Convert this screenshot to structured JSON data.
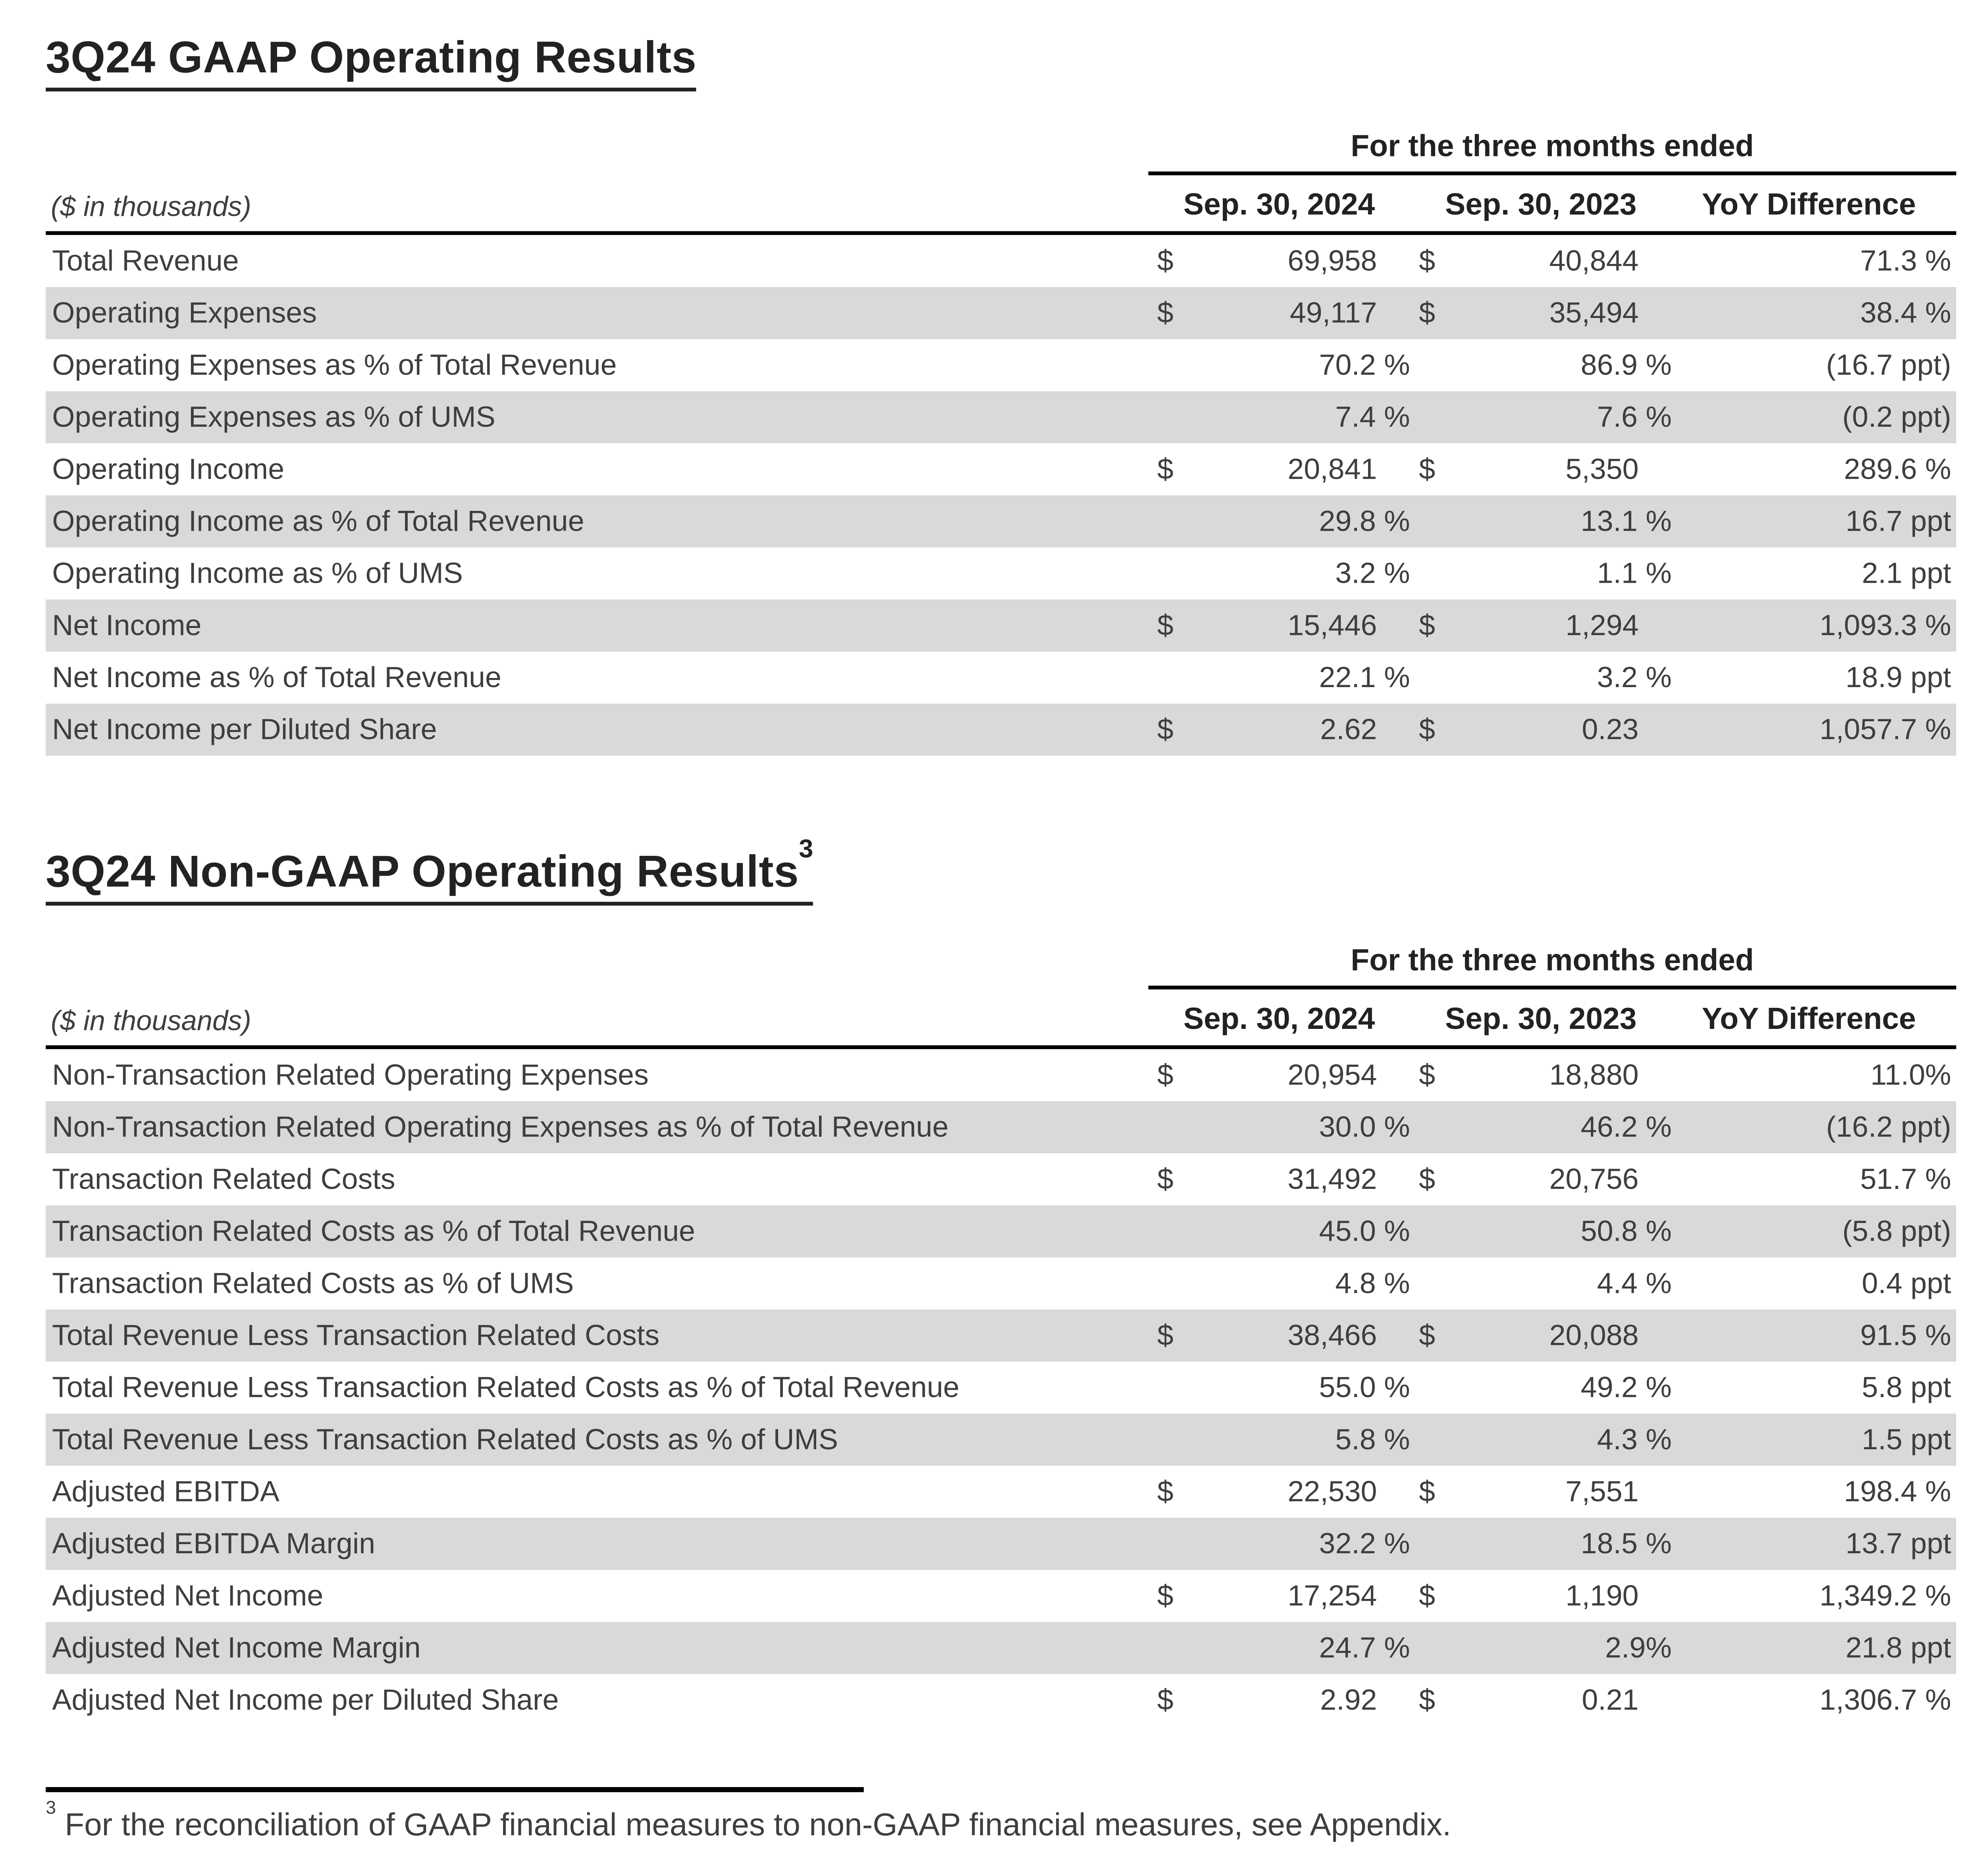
{
  "colors": {
    "row_shade": "#d9d9d9",
    "text": "#3e3e3e",
    "heading": "#222222",
    "rule": "#000000"
  },
  "tables": [
    {
      "title": "3Q24 GAAP Operating Results",
      "title_sup": "",
      "span_header": "For the three months ended",
      "unit_label": "($ in thousands)",
      "columns": [
        "Sep. 30, 2024",
        "Sep. 30, 2023",
        "YoY Difference"
      ],
      "rows": [
        {
          "label": "Total Revenue",
          "d1": "$",
          "v1": "69,958",
          "d2": "$",
          "v2": "40,844",
          "yoy": "71.3 %"
        },
        {
          "label": "Operating Expenses",
          "d1": "$",
          "v1": "49,117",
          "d2": "$",
          "v2": "35,494",
          "yoy": "38.4 %"
        },
        {
          "label": "Operating Expenses as % of Total Revenue",
          "d1": "",
          "v1": "70.2 %",
          "d2": "",
          "v2": "86.9 %",
          "yoy": "(16.7 ppt)"
        },
        {
          "label": "Operating Expenses as % of UMS",
          "d1": "",
          "v1": "7.4 %",
          "d2": "",
          "v2": "7.6 %",
          "yoy": "(0.2 ppt)"
        },
        {
          "label": "Operating Income",
          "d1": "$",
          "v1": "20,841",
          "d2": "$",
          "v2": "5,350",
          "yoy": "289.6 %"
        },
        {
          "label": "Operating Income as % of Total Revenue",
          "d1": "",
          "v1": "29.8 %",
          "d2": "",
          "v2": "13.1 %",
          "yoy": "16.7 ppt"
        },
        {
          "label": "Operating Income as % of UMS",
          "d1": "",
          "v1": "3.2 %",
          "d2": "",
          "v2": "1.1 %",
          "yoy": "2.1 ppt"
        },
        {
          "label": "Net Income",
          "d1": "$",
          "v1": "15,446",
          "d2": "$",
          "v2": "1,294",
          "yoy": "1,093.3 %"
        },
        {
          "label": "Net Income as % of Total Revenue",
          "d1": "",
          "v1": "22.1 %",
          "d2": "",
          "v2": "3.2 %",
          "yoy": "18.9 ppt"
        },
        {
          "label": "Net Income per Diluted Share",
          "d1": "$",
          "v1": "2.62",
          "d2": "$",
          "v2": "0.23",
          "yoy": "1,057.7 %"
        }
      ]
    },
    {
      "title": "3Q24 Non-GAAP Operating Results",
      "title_sup": "3",
      "span_header": "For the three months ended",
      "unit_label": "($ in thousands)",
      "columns": [
        "Sep. 30, 2024",
        "Sep. 30, 2023",
        "YoY Difference"
      ],
      "rows": [
        {
          "label": "Non-Transaction Related Operating Expenses",
          "d1": "$",
          "v1": "20,954",
          "d2": "$",
          "v2": "18,880",
          "yoy": "11.0%"
        },
        {
          "label": "Non-Transaction Related Operating Expenses as % of Total Revenue",
          "d1": "",
          "v1": "30.0 %",
          "d2": "",
          "v2": "46.2 %",
          "yoy": "(16.2 ppt)"
        },
        {
          "label": "Transaction Related Costs",
          "d1": "$",
          "v1": "31,492",
          "d2": "$",
          "v2": "20,756",
          "yoy": "51.7 %"
        },
        {
          "label": "Transaction Related Costs as % of Total Revenue",
          "d1": "",
          "v1": "45.0 %",
          "d2": "",
          "v2": "50.8 %",
          "yoy": "(5.8 ppt)"
        },
        {
          "label": "Transaction Related Costs as % of UMS",
          "d1": "",
          "v1": "4.8 %",
          "d2": "",
          "v2": "4.4 %",
          "yoy": "0.4 ppt"
        },
        {
          "label": "Total Revenue Less Transaction Related Costs",
          "d1": "$",
          "v1": "38,466",
          "d2": "$",
          "v2": "20,088",
          "yoy": "91.5 %"
        },
        {
          "label": "Total Revenue Less Transaction Related Costs as % of Total Revenue",
          "d1": "",
          "v1": "55.0 %",
          "d2": "",
          "v2": "49.2 %",
          "yoy": "5.8 ppt"
        },
        {
          "label": "Total Revenue Less Transaction Related Costs as % of UMS",
          "d1": "",
          "v1": "5.8 %",
          "d2": "",
          "v2": "4.3 %",
          "yoy": "1.5 ppt"
        },
        {
          "label": "Adjusted EBITDA",
          "d1": "$",
          "v1": "22,530",
          "d2": "$",
          "v2": "7,551",
          "yoy": "198.4 %"
        },
        {
          "label": "Adjusted EBITDA Margin",
          "d1": "",
          "v1": "32.2 %",
          "d2": "",
          "v2": "18.5 %",
          "yoy": "13.7 ppt"
        },
        {
          "label": "Adjusted Net Income",
          "d1": "$",
          "v1": "17,254",
          "d2": "$",
          "v2": "1,190",
          "yoy": "1,349.2 %"
        },
        {
          "label": "Adjusted Net Income Margin",
          "d1": "",
          "v1": "24.7 %",
          "d2": "",
          "v2": "2.9%",
          "yoy": "21.8 ppt"
        },
        {
          "label": "Adjusted Net Income per Diluted Share",
          "d1": "$",
          "v1": "2.92",
          "d2": "$",
          "v2": "0.21",
          "yoy": "1,306.7 %"
        }
      ]
    }
  ],
  "footnote": {
    "sup": "3",
    "text": "For the reconciliation of GAAP financial measures to non-GAAP financial measures, see Appendix."
  }
}
